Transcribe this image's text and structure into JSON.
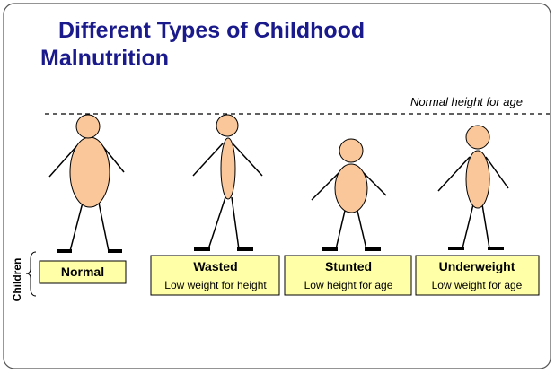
{
  "title": {
    "line1": "Different Types of Childhood",
    "line2": "Malnutrition"
  },
  "reference_label": "Normal height for age",
  "group_label": "Children",
  "types": [
    {
      "name": "Normal"
    },
    {
      "name": "Wasted",
      "description": "Low weight for height"
    },
    {
      "name": "Stunted",
      "description": "Low height for age"
    },
    {
      "name": "Underweight",
      "description": "Low weight for age"
    }
  ]
}
